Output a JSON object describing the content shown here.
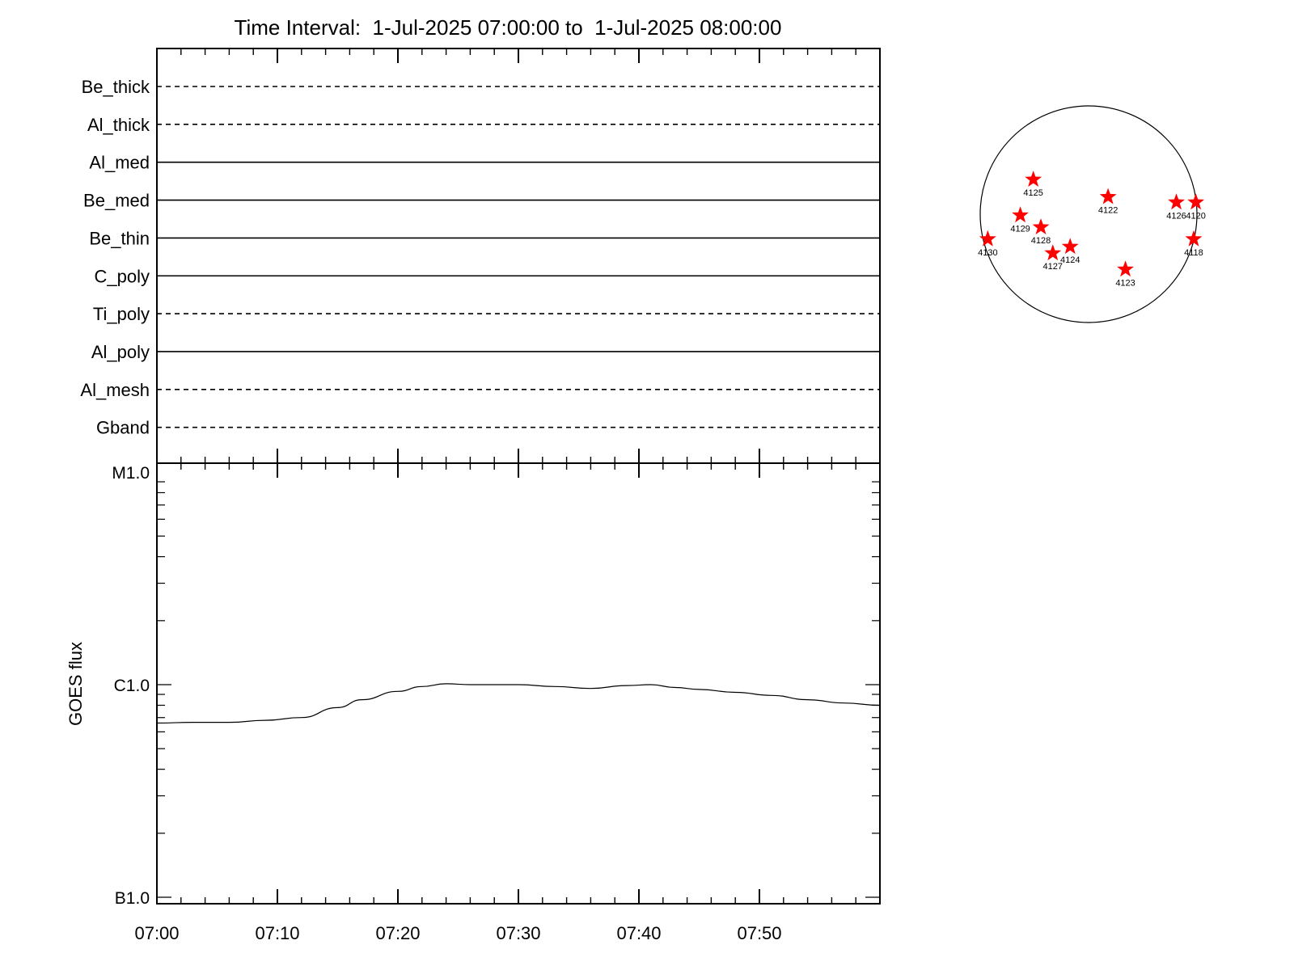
{
  "title": "Time Interval:  1-Jul-2025 07:00:00 to  1-Jul-2025 08:00:00",
  "colors": {
    "axis": "#000000",
    "curve": "#000000",
    "star": "#ff0000",
    "background": "#ffffff"
  },
  "chart_data": [
    {
      "type": "line",
      "panel": "filter-timeline",
      "categories": [
        "Be_thick",
        "Al_thick",
        "Al_med",
        "Be_med",
        "Be_thin",
        "C_poly",
        "Ti_poly",
        "Al_poly",
        "Al_mesh",
        "Gband"
      ],
      "series": [
        {
          "category": "Be_thick",
          "style": "dashed"
        },
        {
          "category": "Al_thick",
          "style": "dashed"
        },
        {
          "category": "Al_med",
          "style": "solid"
        },
        {
          "category": "Be_med",
          "style": "solid"
        },
        {
          "category": "Be_thin",
          "style": "solid"
        },
        {
          "category": "C_poly",
          "style": "solid"
        },
        {
          "category": "Ti_poly",
          "style": "dashed"
        },
        {
          "category": "Al_poly",
          "style": "solid"
        },
        {
          "category": "Al_mesh",
          "style": "dashed"
        },
        {
          "category": "Gband",
          "style": "dashed"
        }
      ],
      "xlim_minutes": [
        0,
        60
      ]
    },
    {
      "type": "line",
      "panel": "goes-flux",
      "ylabel": "GOES flux",
      "yscale": "log",
      "ylim": [
        1e-07,
        1e-05
      ],
      "yticks": [
        {
          "value": 1e-05,
          "label": "M1.0"
        },
        {
          "value": 1e-06,
          "label": "C1.0"
        },
        {
          "value": 1e-07,
          "label": "B1.0"
        }
      ],
      "xticks": [
        "07:00",
        "07:10",
        "07:20",
        "07:30",
        "07:40",
        "07:50"
      ],
      "xlim_minutes": [
        0,
        60
      ],
      "x_minutes": [
        0,
        3,
        6,
        9,
        12,
        15,
        17,
        20,
        22,
        24,
        26,
        30,
        33,
        36,
        39,
        41,
        43,
        45,
        48,
        51,
        54,
        57,
        60
      ],
      "values": [
        6.6e-07,
        6.65e-07,
        6.65e-07,
        6.8e-07,
        7e-07,
        7.8e-07,
        8.5e-07,
        9.3e-07,
        9.8e-07,
        1.01e-06,
        1e-06,
        1e-06,
        9.8e-07,
        9.6e-07,
        9.9e-07,
        1e-06,
        9.7e-07,
        9.5e-07,
        9.2e-07,
        8.9e-07,
        8.5e-07,
        8.2e-07,
        8e-07
      ],
      "grid": false
    },
    {
      "type": "scatter",
      "panel": "active-region-map",
      "marker": "star",
      "points": [
        {
          "label": "4125",
          "x": -0.51,
          "y": 0.32
        },
        {
          "label": "4122",
          "x": 0.18,
          "y": 0.16
        },
        {
          "label": "4126",
          "x": 0.81,
          "y": 0.11
        },
        {
          "label": "4120",
          "x": 0.99,
          "y": 0.11
        },
        {
          "label": "4129",
          "x": -0.63,
          "y": -0.01
        },
        {
          "label": "4128",
          "x": -0.44,
          "y": -0.12
        },
        {
          "label": "4130",
          "x": -0.93,
          "y": -0.23
        },
        {
          "label": "4118",
          "x": 0.97,
          "y": -0.23
        },
        {
          "label": "4124",
          "x": -0.17,
          "y": -0.3
        },
        {
          "label": "4127",
          "x": -0.33,
          "y": -0.36
        },
        {
          "label": "4123",
          "x": 0.34,
          "y": -0.51
        }
      ]
    }
  ]
}
